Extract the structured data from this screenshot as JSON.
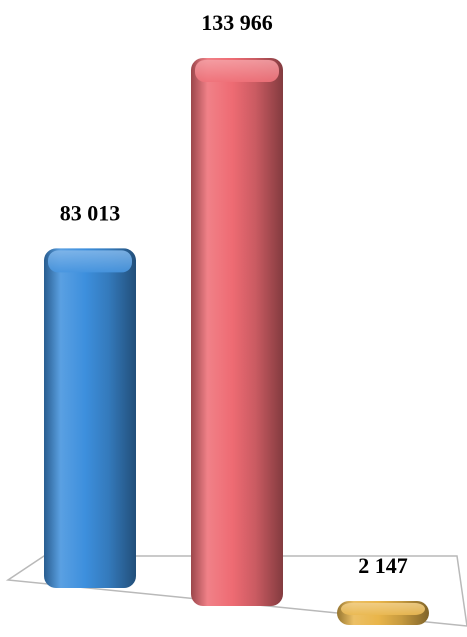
{
  "chart_data": {
    "type": "bar",
    "categories": [
      "",
      "",
      ""
    ],
    "values": [
      83013,
      133966,
      2147
    ],
    "data_labels": [
      "83 013",
      "133 966",
      "2 147"
    ],
    "colors": [
      "#3d8fdd",
      "#ee6b73",
      "#e9b54a"
    ],
    "title": "",
    "xlabel": "",
    "ylabel": "",
    "ylim": [
      0,
      140000
    ],
    "grid": false,
    "legend": "none"
  }
}
